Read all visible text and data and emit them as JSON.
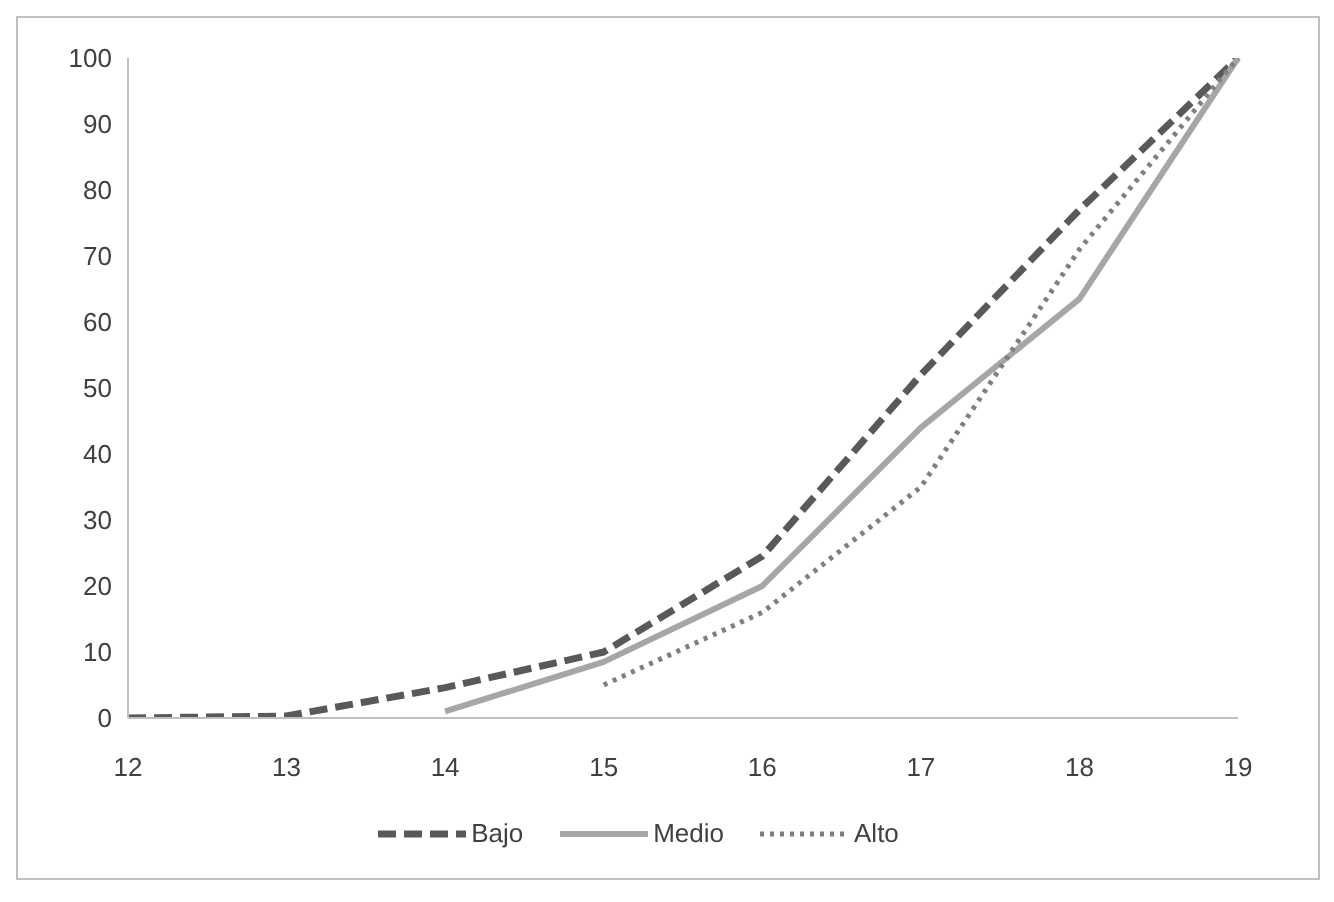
{
  "chart_data": {
    "type": "line",
    "categories": [
      "12",
      "13",
      "14",
      "15",
      "16",
      "17",
      "18",
      "19"
    ],
    "series": [
      {
        "name": "Bajo",
        "color": "#595959",
        "line_style": "dashed",
        "values": [
          0,
          0.3,
          4.6,
          10,
          24.5,
          52,
          77,
          100
        ]
      },
      {
        "name": "Medio",
        "color": "#a6a6a6",
        "line_style": "solid",
        "values": [
          null,
          null,
          1,
          8.5,
          20,
          44,
          63.5,
          100
        ]
      },
      {
        "name": "Alto",
        "color": "#7f7f7f",
        "line_style": "dotted",
        "values": [
          null,
          null,
          null,
          5,
          16,
          35,
          71,
          100
        ]
      }
    ],
    "ylim": [
      0,
      100
    ],
    "yticks": [
      0,
      10,
      20,
      30,
      40,
      50,
      60,
      70,
      80,
      90,
      100
    ],
    "grid": false,
    "legend": "bottom",
    "marker": "none"
  }
}
